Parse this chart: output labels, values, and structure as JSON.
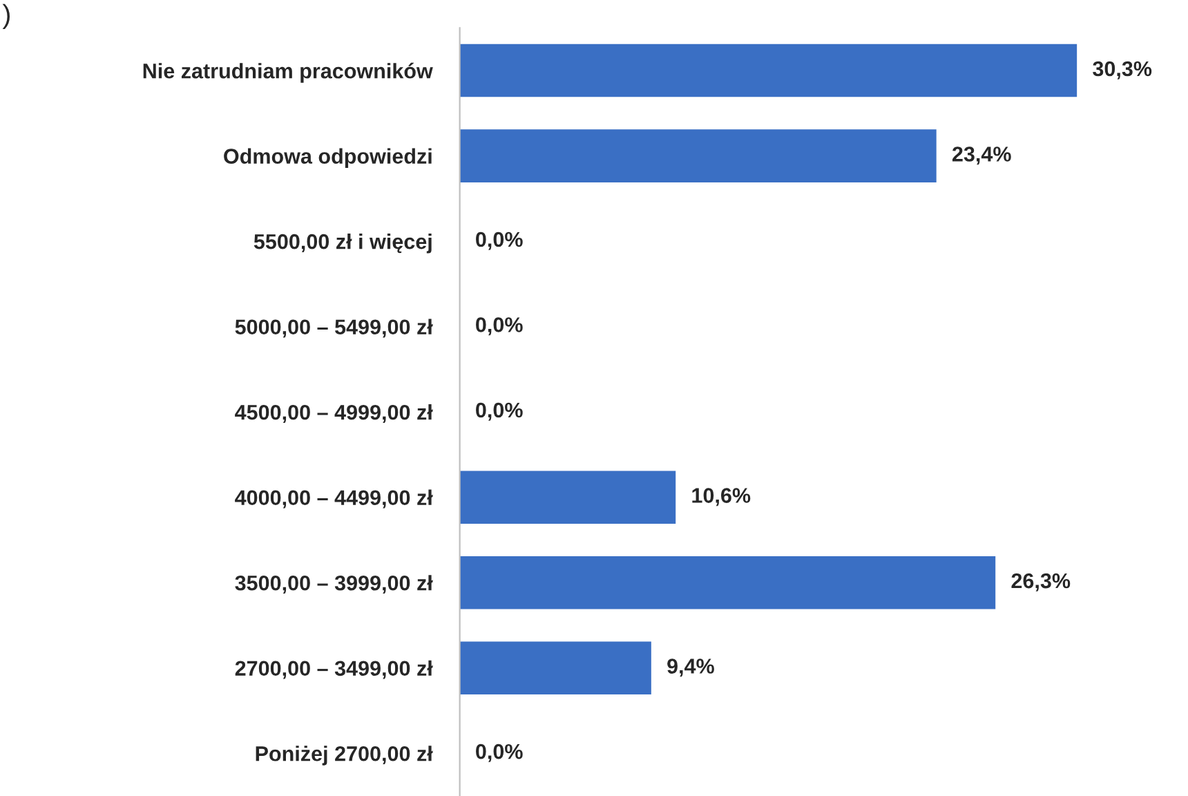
{
  "chart_data": {
    "type": "bar",
    "orientation": "horizontal",
    "categories": [
      "Nie zatrudniam pracowników",
      "Odmowa odpowiedzi",
      "5500,00 zł i więcej",
      "5000,00 – 5499,00 zł",
      "4500,00 – 4999,00 zł",
      "4000,00 – 4499,00 zł",
      "3500,00 – 3999,00 zł",
      "2700,00 – 3499,00 zł",
      "Poniżej 2700,00 zł"
    ],
    "values": [
      30.3,
      23.4,
      0.0,
      0.0,
      0.0,
      10.6,
      26.3,
      9.4,
      0.0
    ],
    "value_labels": [
      "30,3%",
      "23,4%",
      "0,0%",
      "0,0%",
      "0,0%",
      "10,6%",
      "26,3%",
      "9,4%",
      "0,0%"
    ],
    "color": "#3a6fc4",
    "annotations": [
      ")"
    ],
    "grid": false,
    "legend": false
  }
}
